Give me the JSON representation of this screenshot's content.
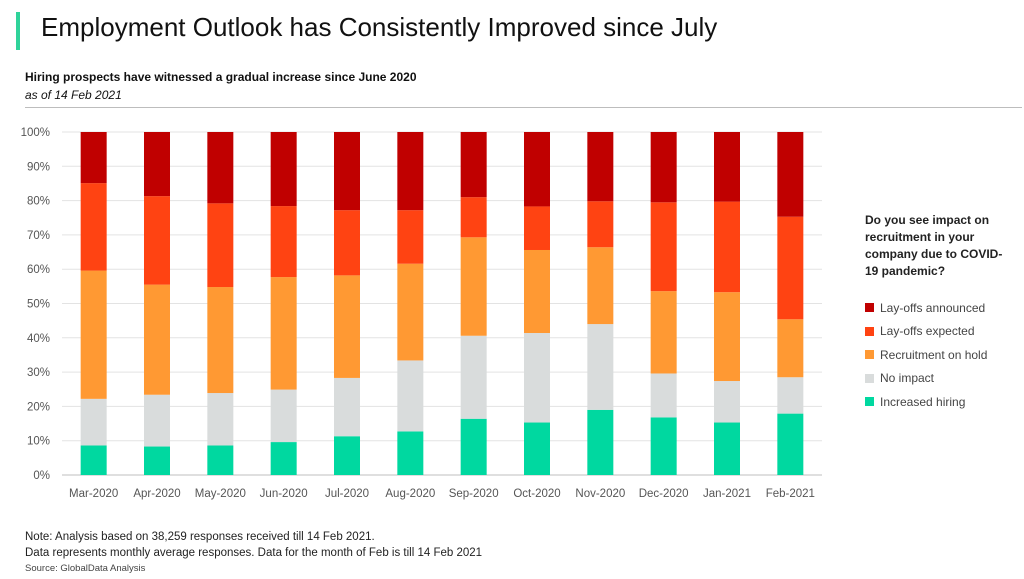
{
  "header": {
    "title": "Employment Outlook has Consistently Improved since July",
    "subtitle": "Hiring prospects have witnessed a gradual increase since June 2020",
    "as_of": "as of 14 Feb 2021"
  },
  "legend": {
    "title": "Do you see impact on recruitment in your company due to COVID-19 pandemic?"
  },
  "footer": {
    "note_line1": "Note: Analysis based on 38,259 responses received till 14 Feb 2021.",
    "note_line2": "Data represents monthly average responses. Data for the month of Feb is till 14 Feb 2021",
    "source": "Source: GlobalData Analysis"
  },
  "chart_data": {
    "type": "bar",
    "stacked": true,
    "categories": [
      "Mar-2020",
      "Apr-2020",
      "May-2020",
      "Jun-2020",
      "Jul-2020",
      "Aug-2020",
      "Sep-2020",
      "Oct-2020",
      "Nov-2020",
      "Dec-2020",
      "Jan-2021",
      "Feb-2021"
    ],
    "ylim": [
      0,
      100
    ],
    "yticks": [
      "0%",
      "10%",
      "20%",
      "30%",
      "40%",
      "50%",
      "60%",
      "70%",
      "80%",
      "90%",
      "100%"
    ],
    "grid": true,
    "legend_position": "right",
    "series": [
      {
        "name": "Increased hiring",
        "color": "#00d8a0",
        "values": [
          8.6,
          8.3,
          8.6,
          9.6,
          11.3,
          12.7,
          16.4,
          15.3,
          19.0,
          16.8,
          15.3,
          17.9
        ]
      },
      {
        "name": "No impact",
        "color": "#d9dcdc",
        "values": [
          13.6,
          15.1,
          15.3,
          15.3,
          17.0,
          20.7,
          24.2,
          26.1,
          25.0,
          12.8,
          12.1,
          10.6
        ]
      },
      {
        "name": "Recruitment on hold",
        "color": "#ff9933",
        "values": [
          37.4,
          32.1,
          30.9,
          32.8,
          29.9,
          28.2,
          28.7,
          24.2,
          22.4,
          24.0,
          25.9,
          16.9
        ]
      },
      {
        "name": "Lay-offs expected",
        "color": "#ff4312",
        "values": [
          25.5,
          25.8,
          24.4,
          20.7,
          19.0,
          15.6,
          11.7,
          12.7,
          13.4,
          25.9,
          26.4,
          29.9
        ]
      },
      {
        "name": "Lay-offs announced",
        "color": "#c00000",
        "values": [
          14.9,
          18.7,
          20.8,
          21.6,
          22.8,
          22.8,
          19.0,
          21.7,
          20.2,
          20.5,
          20.3,
          24.7
        ]
      }
    ]
  }
}
